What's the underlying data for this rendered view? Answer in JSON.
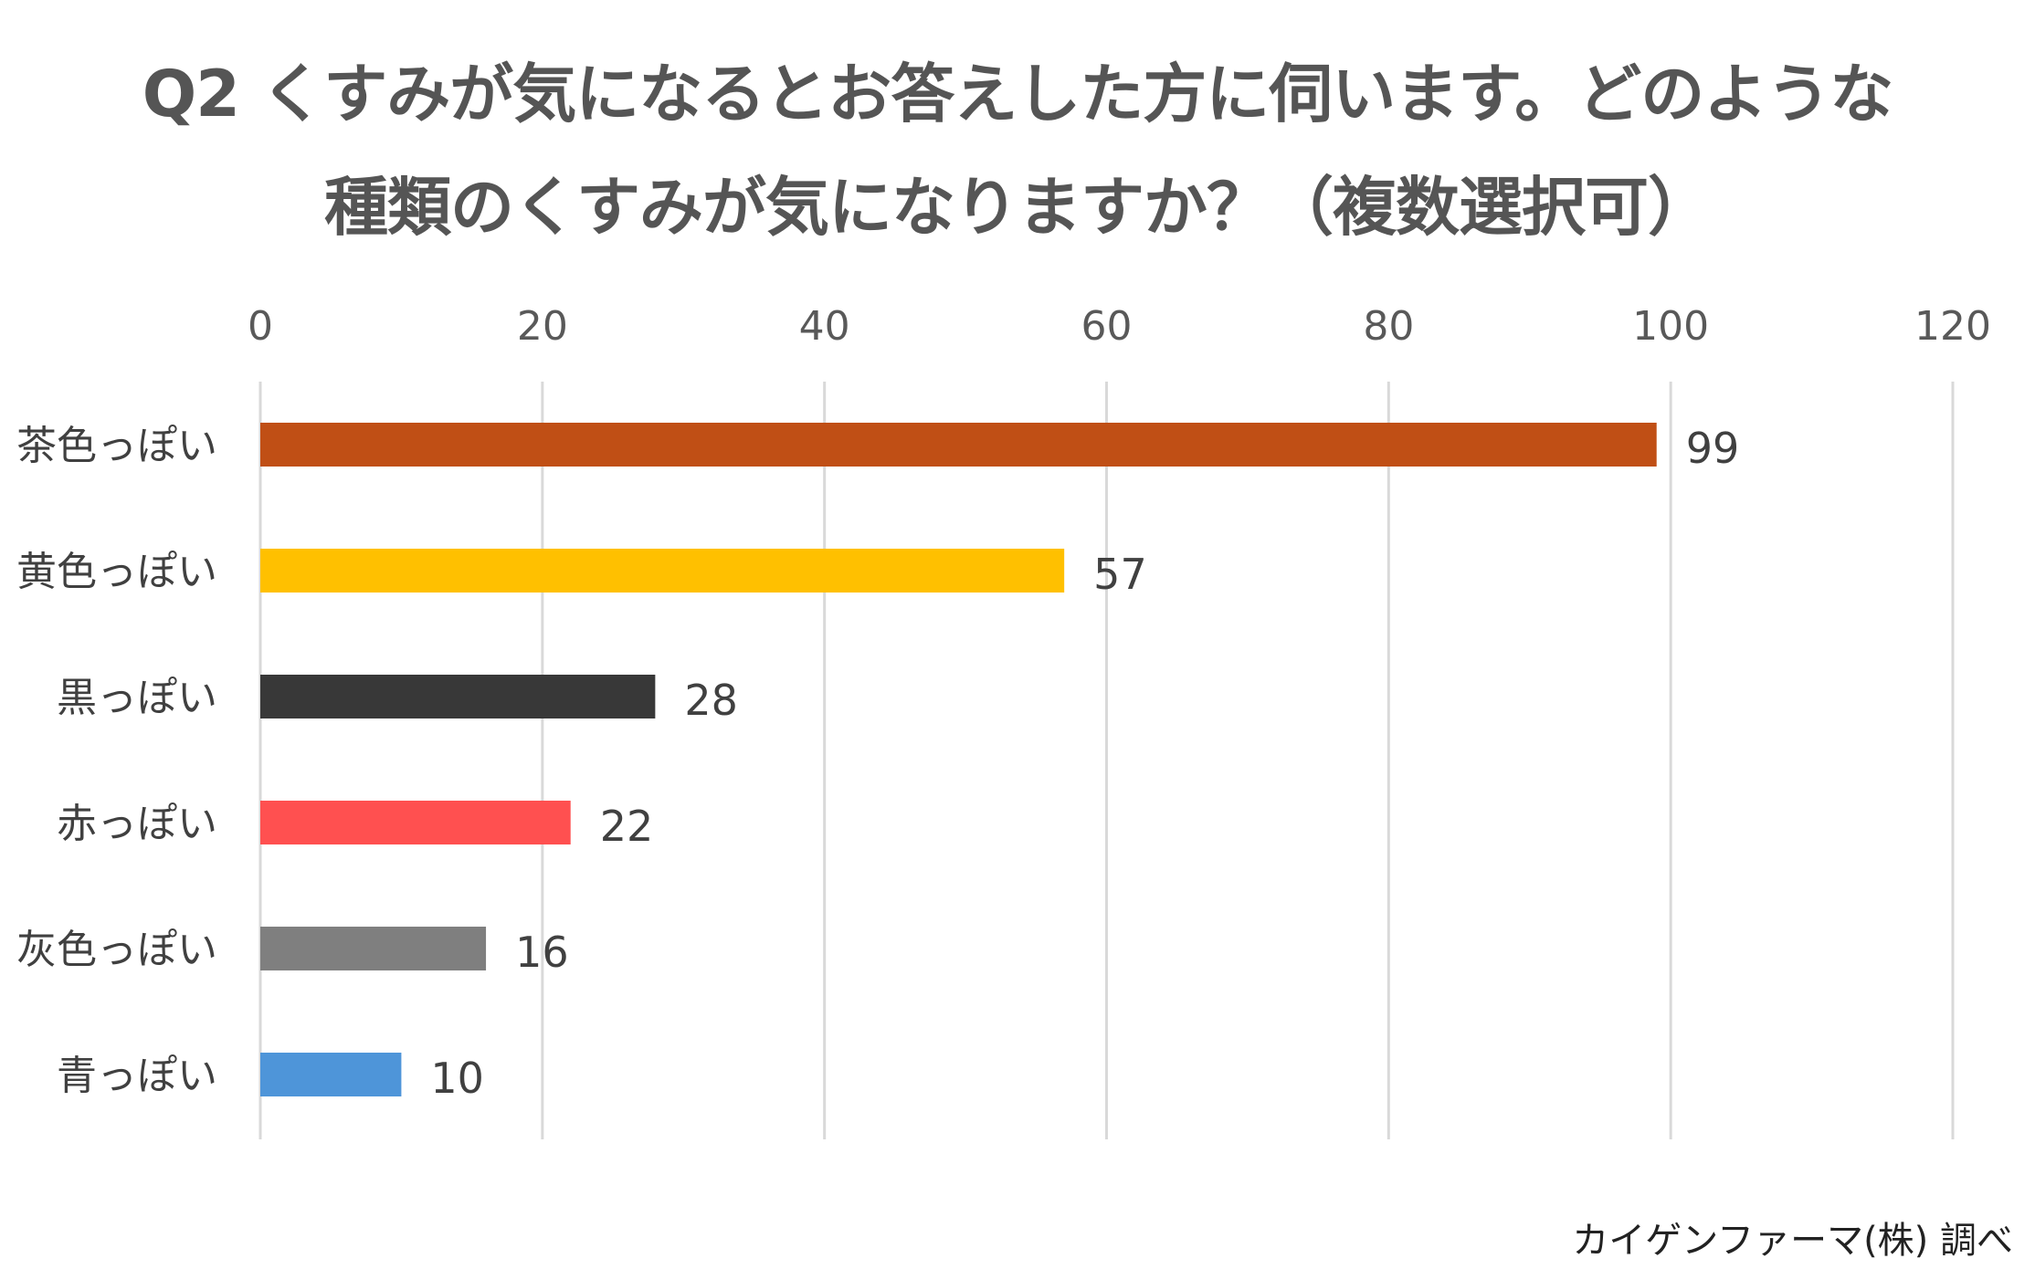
{
  "title": {
    "line1": "Q2 くすみが気になるとお答えした方に伺います。どのような",
    "line2": "種類のくすみが気になりますか？（複数選択可）"
  },
  "source": "カイゲンファーマ(株) 調べ",
  "chart_data": {
    "type": "bar",
    "orientation": "horizontal",
    "categories": [
      "茶色っぽい",
      "黄色っぽい",
      "黒っぽい",
      "赤っぽい",
      "灰色っぽい",
      "青っぽい"
    ],
    "values": [
      99,
      57,
      28,
      22,
      16,
      10
    ],
    "colors": [
      "#C04F15",
      "#FFC000",
      "#383838",
      "#FF5050",
      "#7F7F7F",
      "#4E95D9"
    ],
    "xlim": [
      0,
      120
    ],
    "x_ticks": [
      0,
      20,
      40,
      60,
      80,
      100,
      120
    ],
    "x_axis_position": "top",
    "grid": true,
    "data_labels": true
  }
}
